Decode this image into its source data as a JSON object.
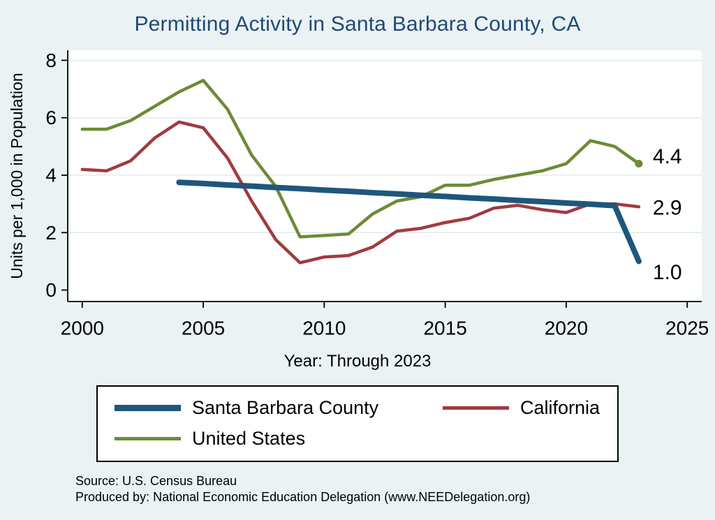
{
  "colors": {
    "background": "#eaf2f3",
    "plot_background": "#ffffff",
    "grid": "#dde9ef",
    "axis": "#000000",
    "title": "#1f4977",
    "santa_barbara": "#1e567c",
    "california": "#a03b40",
    "united_states": "#6d8b35"
  },
  "footer": {
    "source": "Source: U.S. Census Bureau",
    "produced_by": "Produced by: National Economic Education Delegation (www.NEEDelegation.org)"
  },
  "chart_data": {
    "type": "line",
    "title": "Permitting Activity in Santa Barbara County, CA",
    "xlabel": "Year: Through 2023",
    "ylabel": "Units per 1,000 in Population",
    "xlim": [
      2000,
      2025
    ],
    "ylim": [
      0,
      8
    ],
    "xticks": [
      2000,
      2005,
      2010,
      2015,
      2020,
      2025
    ],
    "yticks": [
      0,
      2,
      4,
      6,
      8
    ],
    "grid": "horizontal-y",
    "legend_position": "bottom-box",
    "series": [
      {
        "name": "Santa Barbara County",
        "color": "#1e567c",
        "line_width": 8,
        "end_label": "1.0",
        "end_dot": false,
        "x": [
          2004,
          2005,
          2006,
          2007,
          2008,
          2009,
          2010,
          2011,
          2012,
          2013,
          2014,
          2015,
          2016,
          2017,
          2018,
          2019,
          2020,
          2021,
          2022,
          2023
        ],
        "y": [
          3.75,
          3.71,
          3.66,
          3.62,
          3.57,
          3.53,
          3.48,
          3.44,
          3.39,
          3.35,
          3.3,
          3.26,
          3.21,
          3.17,
          3.12,
          3.08,
          3.03,
          2.99,
          2.94,
          1.0
        ]
      },
      {
        "name": "California",
        "color": "#a03b40",
        "line_width": 4.5,
        "end_label": "2.9",
        "end_dot": false,
        "x": [
          2000,
          2001,
          2002,
          2003,
          2004,
          2005,
          2006,
          2007,
          2008,
          2009,
          2010,
          2011,
          2012,
          2013,
          2014,
          2015,
          2016,
          2017,
          2018,
          2019,
          2020,
          2021,
          2022,
          2023
        ],
        "y": [
          4.2,
          4.15,
          4.5,
          5.3,
          5.85,
          5.65,
          4.6,
          3.1,
          1.75,
          0.95,
          1.15,
          1.2,
          1.5,
          2.05,
          2.15,
          2.35,
          2.5,
          2.85,
          2.95,
          2.8,
          2.7,
          3.0,
          3.0,
          2.9
        ]
      },
      {
        "name": "United States",
        "color": "#6d8b35",
        "line_width": 4.5,
        "end_label": "4.4",
        "end_dot": true,
        "x": [
          2000,
          2001,
          2002,
          2003,
          2004,
          2005,
          2006,
          2007,
          2008,
          2009,
          2010,
          2011,
          2012,
          2013,
          2014,
          2015,
          2016,
          2017,
          2018,
          2019,
          2020,
          2021,
          2022,
          2023
        ],
        "y": [
          5.6,
          5.6,
          5.9,
          6.4,
          6.9,
          7.3,
          6.3,
          4.7,
          3.6,
          1.85,
          1.9,
          1.95,
          2.65,
          3.1,
          3.25,
          3.65,
          3.65,
          3.85,
          4.0,
          4.15,
          4.4,
          5.2,
          5.0,
          4.4
        ]
      }
    ]
  }
}
